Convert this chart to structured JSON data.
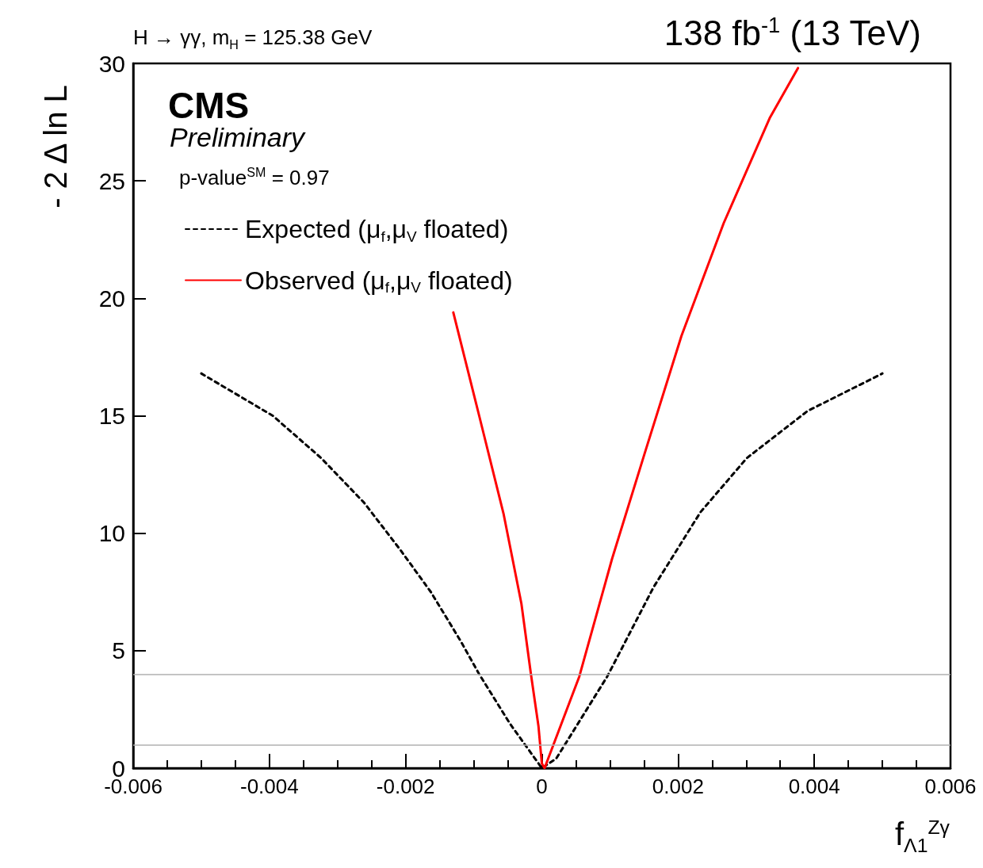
{
  "chart_data": {
    "type": "line",
    "title": "H → γγ, m$_{H}$ = 125.38 GeV",
    "subtitle": "138 fb$^{-1}$ (13 TeV)",
    "annotations": [
      "CMS",
      "Preliminary",
      "p-value$^{SM}$ = 0.97"
    ],
    "xlabel": "f$_{Λ1}$$^{Zγ}$",
    "ylabel": "- 2 Δ ln L",
    "xlim": [
      -0.006,
      0.006
    ],
    "xticks": [
      -0.006,
      -0.004,
      -0.002,
      0,
      0.002,
      0.004,
      0.006
    ],
    "ylim": [
      0,
      30
    ],
    "yticks": [
      0,
      5,
      10,
      15,
      20,
      25,
      30
    ],
    "grid": false,
    "legend": "top left",
    "marker": "none",
    "ref_lines": [
      {
        "axis": "y",
        "value": 1,
        "color": "#b0b0b0"
      },
      {
        "axis": "y",
        "value": 4,
        "color": "#b0b0b0"
      }
    ],
    "series": [
      {
        "name": "Expected (μ$_{f}$,μ$_{V}$ floated)",
        "color": "#000000",
        "line_style": "dashed",
        "x": [
          -0.005,
          -0.00395,
          -0.00324,
          -0.00261,
          -0.00208,
          -0.00163,
          -0.00119,
          -0.00092,
          -0.00047,
          0,
          0.00021,
          0.00096,
          0.00164,
          0.00233,
          0.00301,
          0.0039,
          0.005
        ],
        "values": [
          16.8,
          15.0,
          13.2,
          11.3,
          9.3,
          7.5,
          5.4,
          4.0,
          1.9,
          0,
          0.4,
          3.9,
          7.7,
          10.9,
          13.2,
          15.2,
          16.8
        ]
      },
      {
        "name": "Observed (μ$_{f}$,μ$_{V}$ floated)",
        "color": "#ff0000",
        "line_style": "solid",
        "x": [
          -0.0013,
          -0.00092,
          -0.00056,
          -0.0003,
          -0.00016,
          -5e-05,
          0,
          4e-05,
          0.00055,
          0.00103,
          0.00151,
          0.00205,
          0.00267,
          0.00335,
          0.00376
        ],
        "values": [
          19.4,
          15.0,
          10.8,
          7.0,
          4.0,
          1.8,
          0.2,
          0,
          3.9,
          8.9,
          13.4,
          18.4,
          23.2,
          27.7,
          29.8
        ]
      }
    ]
  }
}
